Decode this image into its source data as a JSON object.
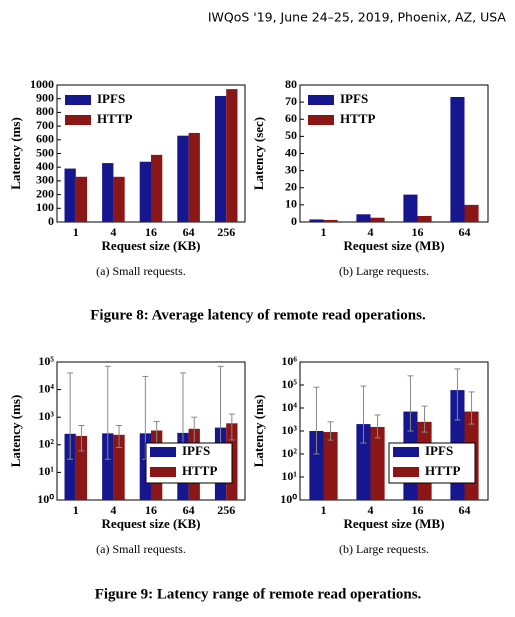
{
  "header": "IWQoS '19, June 24–25, 2019, Phoenix, AZ, USA",
  "captions": [
    "Figure 8: Average latency of remote read operations.",
    "Figure 9: Latency range of remote read operations."
  ],
  "chart_data": [
    {
      "type": "bar",
      "subcaption": "(a)  Small requests.",
      "x_label": "Request size (KB)",
      "y_label": "Latency (ms)",
      "categories": [
        "1",
        "4",
        "16",
        "64",
        "256"
      ],
      "series": [
        {
          "name": "IPFS",
          "color": "#16168f",
          "values": [
            390,
            430,
            440,
            630,
            920
          ]
        },
        {
          "name": "HTTP",
          "color": "#8a1616",
          "values": [
            330,
            330,
            490,
            650,
            970
          ]
        }
      ],
      "ylim": [
        0,
        1000
      ],
      "yticks": [
        0,
        100,
        200,
        300,
        400,
        500,
        600,
        700,
        800,
        900,
        1000
      ],
      "legend": "upper-left"
    },
    {
      "type": "bar",
      "subcaption": "(b)  Large requests.",
      "x_label": "Request size (MB)",
      "y_label": "Latency (sec)",
      "categories": [
        "1",
        "4",
        "16",
        "64"
      ],
      "series": [
        {
          "name": "IPFS",
          "color": "#16168f",
          "values": [
            1.5,
            4.5,
            16,
            73
          ]
        },
        {
          "name": "HTTP",
          "color": "#8a1616",
          "values": [
            1.2,
            2.5,
            3.5,
            10
          ]
        }
      ],
      "ylim": [
        0,
        80
      ],
      "yticks": [
        0,
        10,
        20,
        30,
        40,
        50,
        60,
        70,
        80
      ],
      "legend": "upper-left"
    },
    {
      "type": "bar",
      "subcaption": "(a)  Small requests.",
      "x_label": "Request size (KB)",
      "y_label": "Latency (ms)",
      "categories": [
        "1",
        "4",
        "16",
        "64",
        "256"
      ],
      "log_scale": true,
      "series": [
        {
          "name": "IPFS",
          "color": "#16168f",
          "values": [
            250,
            260,
            260,
            270,
            420
          ],
          "min": [
            30,
            30,
            30,
            30,
            30
          ],
          "max": [
            40000,
            70000,
            30000,
            40000,
            70000
          ]
        },
        {
          "name": "HTTP",
          "color": "#8a1616",
          "values": [
            210,
            230,
            330,
            380,
            600
          ],
          "min": [
            60,
            80,
            100,
            100,
            150
          ],
          "max": [
            500,
            500,
            700,
            1000,
            1300
          ]
        }
      ],
      "ylim": [
        1,
        100000
      ],
      "yticks": [
        {
          "value": 1,
          "label": "10⁰"
        },
        {
          "value": 10,
          "label": "10¹"
        },
        {
          "value": 100,
          "label": "10²"
        },
        {
          "value": 1000,
          "label": "10³"
        },
        {
          "value": 10000,
          "label": "10⁴"
        },
        {
          "value": 100000,
          "label": "10⁵"
        }
      ],
      "legend": "lower-right"
    },
    {
      "type": "bar",
      "subcaption": "(b)  Large requests.",
      "x_label": "Request size (MB)",
      "y_label": "Latency (ms)",
      "categories": [
        "1",
        "4",
        "16",
        "64"
      ],
      "log_scale": true,
      "series": [
        {
          "name": "IPFS",
          "color": "#16168f",
          "values": [
            1000,
            2000,
            7000,
            60000
          ],
          "min": [
            100,
            300,
            1000,
            3000
          ],
          "max": [
            80000,
            90000,
            250000,
            500000
          ]
        },
        {
          "name": "HTTP",
          "color": "#8a1616",
          "values": [
            900,
            1500,
            2500,
            7000
          ],
          "min": [
            400,
            500,
            900,
            2000
          ],
          "max": [
            2500,
            5000,
            12000,
            50000
          ]
        }
      ],
      "ylim": [
        1,
        1000000
      ],
      "yticks": [
        {
          "value": 1,
          "label": "10⁰"
        },
        {
          "value": 10,
          "label": "10¹"
        },
        {
          "value": 100,
          "label": "10²"
        },
        {
          "value": 1000,
          "label": "10³"
        },
        {
          "value": 10000,
          "label": "10⁴"
        },
        {
          "value": 100000,
          "label": "10⁵"
        },
        {
          "value": 1000000,
          "label": "10⁶"
        }
      ],
      "legend": "lower-right"
    }
  ]
}
